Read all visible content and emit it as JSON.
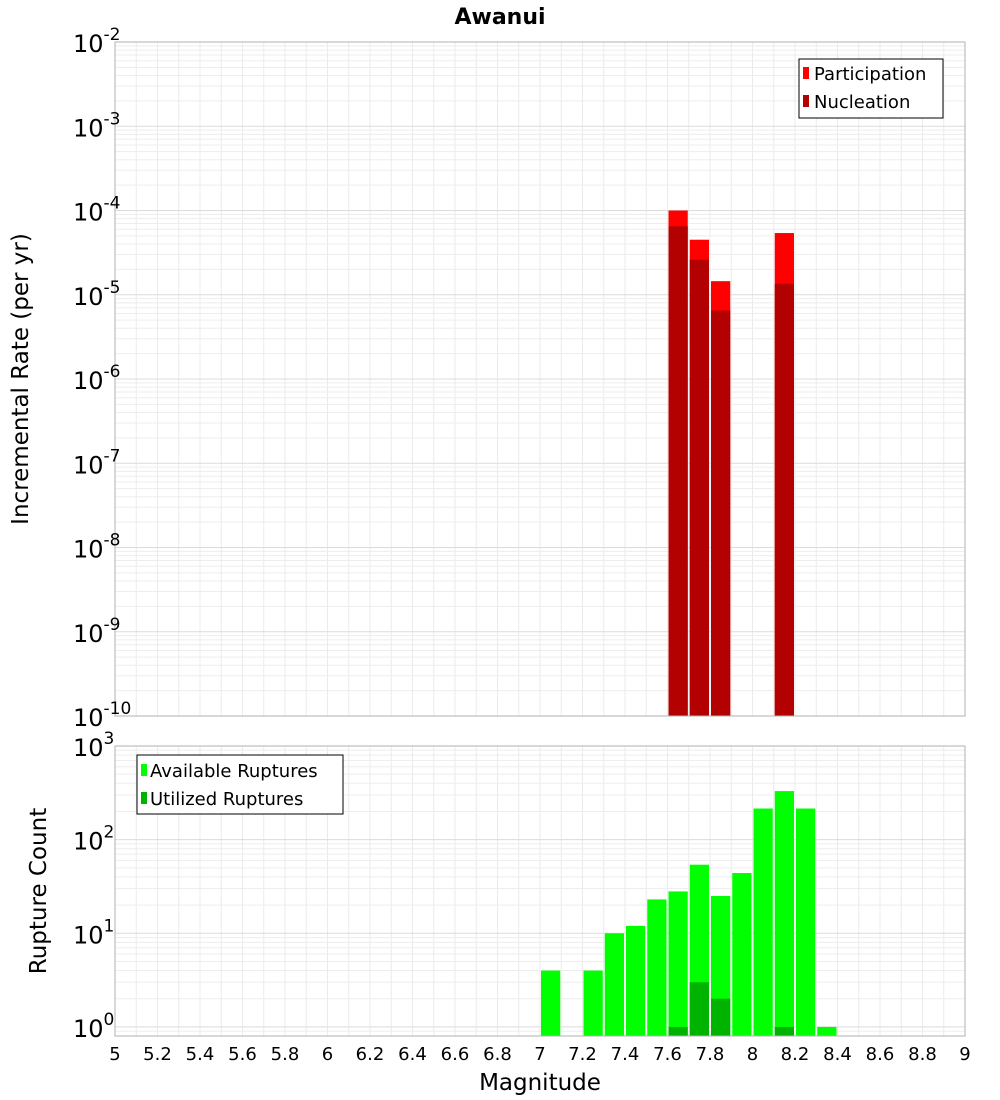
{
  "chart_data": [
    {
      "type": "bar",
      "title": "Awanui",
      "xlabel": "Magnitude",
      "ylabel": "Incremental Rate (per yr)",
      "yscale": "log",
      "ylim": [
        1e-10,
        0.01
      ],
      "xlim": [
        5,
        9
      ],
      "bin_width": 0.1,
      "ytick_labels": [
        {
          "base": "10",
          "exp": "-10",
          "value": 1e-10
        },
        {
          "base": "10",
          "exp": "-9",
          "value": 1e-09
        },
        {
          "base": "10",
          "exp": "-8",
          "value": 1e-08
        },
        {
          "base": "10",
          "exp": "-7",
          "value": 1e-07
        },
        {
          "base": "10",
          "exp": "-6",
          "value": 1e-06
        },
        {
          "base": "10",
          "exp": "-5",
          "value": 1e-05
        },
        {
          "base": "10",
          "exp": "-4",
          "value": 0.0001
        },
        {
          "base": "10",
          "exp": "-3",
          "value": 0.001
        },
        {
          "base": "10",
          "exp": "-2",
          "value": 0.01
        }
      ],
      "legend": {
        "position": "top-right",
        "entries": [
          {
            "name": "Participation",
            "color": "#ff0000"
          },
          {
            "name": "Nucleation",
            "color": "#b30000"
          }
        ]
      },
      "series": [
        {
          "name": "Participation",
          "color": "#ff0000",
          "x": [
            7.65,
            7.75,
            7.85,
            8.15
          ],
          "values": [
            0.0001,
            4.5e-05,
            1.45e-05,
            5.4e-05
          ]
        },
        {
          "name": "Nucleation",
          "color": "#b30000",
          "x": [
            7.65,
            7.75,
            7.85,
            8.15
          ],
          "values": [
            6.5e-05,
            2.6e-05,
            6.5e-06,
            1.35e-05
          ]
        }
      ]
    },
    {
      "type": "bar",
      "xlabel": "Magnitude",
      "ylabel": "Rupture Count",
      "yscale": "log",
      "ylim": [
        0.8,
        1000
      ],
      "xlim": [
        5,
        9
      ],
      "bin_width": 0.1,
      "ytick_labels": [
        {
          "base": "10",
          "exp": "0",
          "value": 1
        },
        {
          "base": "10",
          "exp": "1",
          "value": 10
        },
        {
          "base": "10",
          "exp": "2",
          "value": 100
        },
        {
          "base": "10",
          "exp": "3",
          "value": 1000
        }
      ],
      "xtick_labels": [
        "5",
        "5.2",
        "5.4",
        "5.6",
        "5.8",
        "6",
        "6.2",
        "6.4",
        "6.6",
        "6.8",
        "7",
        "7.2",
        "7.4",
        "7.6",
        "7.8",
        "8",
        "8.2",
        "8.4",
        "8.6",
        "8.8",
        "9"
      ],
      "legend": {
        "position": "top-left",
        "entries": [
          {
            "name": "Available Ruptures",
            "color": "#00ff00"
          },
          {
            "name": "Utilized Ruptures",
            "color": "#00b300"
          }
        ]
      },
      "series": [
        {
          "name": "Available Ruptures",
          "color": "#00ff00",
          "x": [
            7.05,
            7.25,
            7.35,
            7.45,
            7.55,
            7.65,
            7.75,
            7.85,
            7.95,
            8.05,
            8.15,
            8.25,
            8.35
          ],
          "values": [
            4,
            4,
            10,
            12,
            23,
            28,
            54,
            25,
            44,
            215,
            330,
            215,
            1
          ]
        },
        {
          "name": "Utilized Ruptures",
          "color": "#00b300",
          "x": [
            7.65,
            7.75,
            7.85,
            8.15
          ],
          "values": [
            1,
            3,
            2,
            1
          ]
        }
      ]
    }
  ]
}
